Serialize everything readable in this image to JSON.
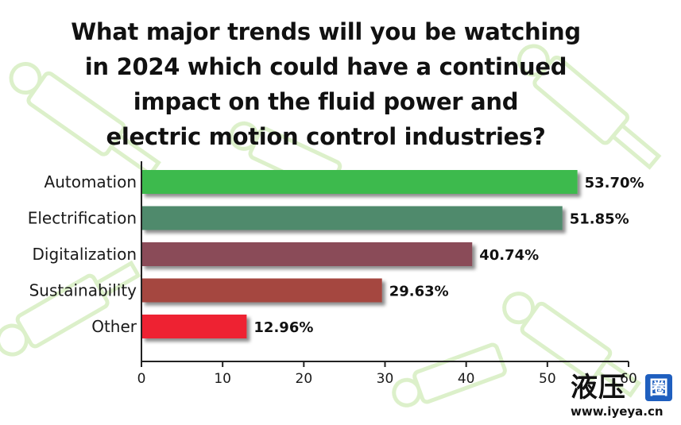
{
  "chart_data": {
    "type": "bar",
    "orientation": "horizontal",
    "title_lines": [
      "What major trends will you be watching",
      "in 2024 which could have a continued",
      "impact on the fluid power and",
      "electric motion control industries?"
    ],
    "categories": [
      "Automation",
      "Electrification",
      "Digitalization",
      "Sustainability",
      "Other"
    ],
    "values": [
      53.7,
      51.85,
      40.74,
      29.63,
      12.96
    ],
    "value_labels": [
      "53.70%",
      "51.85%",
      "40.74%",
      "29.63%",
      "12.96%"
    ],
    "bar_colors": [
      "#3dba4d",
      "#4f8a6c",
      "#8a4b58",
      "#a5463f",
      "#ee2430"
    ],
    "xlim": [
      0,
      60
    ],
    "xticks": [
      0,
      10,
      20,
      30,
      40,
      50,
      60
    ],
    "xtick_labels": [
      "0",
      "10",
      "20",
      "30",
      "40",
      "50",
      "60"
    ],
    "xlabel": "",
    "ylabel": "",
    "grid": false,
    "legend": "none"
  },
  "watermark": {
    "logo_text": "液压",
    "logo_badge": "圈",
    "url": "www.iyeya.cn"
  }
}
